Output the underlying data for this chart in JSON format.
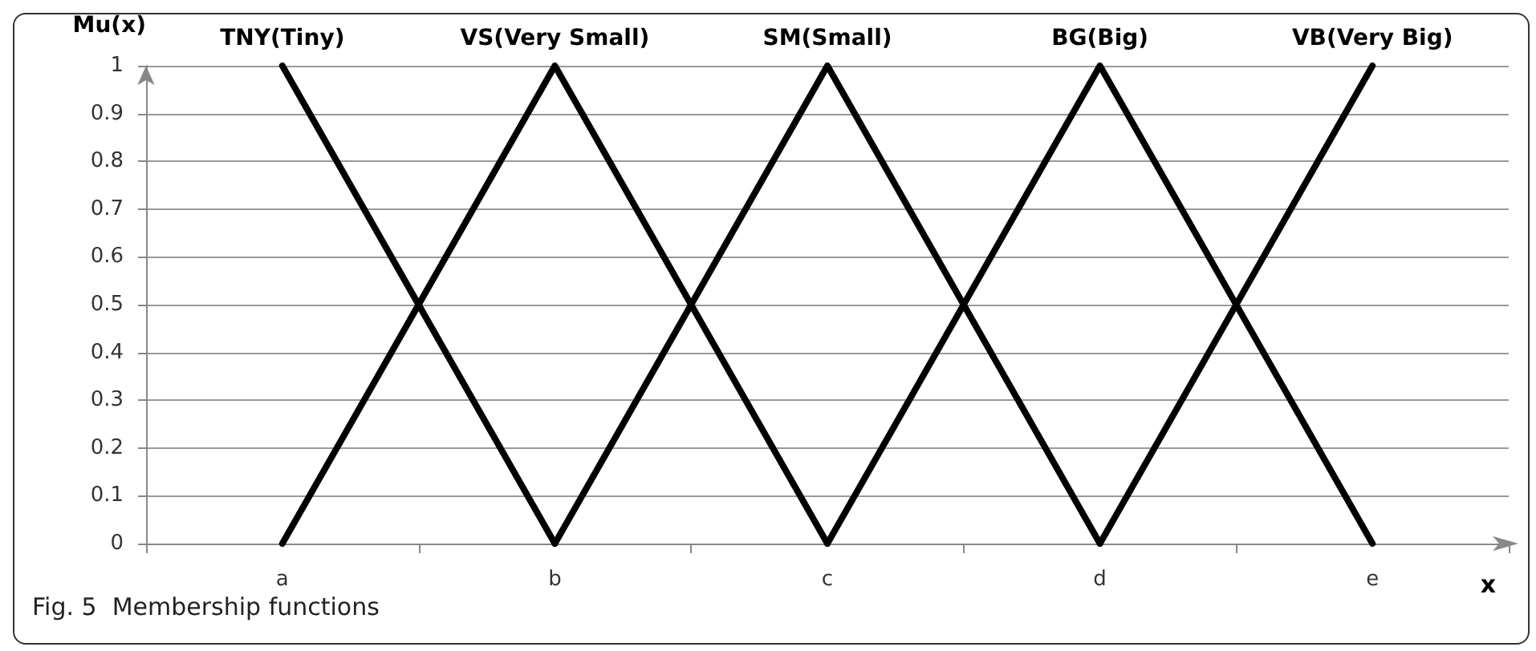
{
  "chart_data": {
    "type": "line",
    "title": "Fig. 5  Membership functions",
    "xlabel": "x",
    "ylabel": "Mu(x)",
    "categories": [
      "a",
      "b",
      "c",
      "d",
      "e"
    ],
    "series": [
      {
        "name": "TNY(Tiny)",
        "color": "#000000",
        "values": [
          1,
          0,
          null,
          null,
          null
        ]
      },
      {
        "name": "VS(Very Small)",
        "color": "#000000",
        "values": [
          0,
          1,
          0,
          null,
          null
        ]
      },
      {
        "name": "SM(Small)",
        "color": "#000000",
        "values": [
          null,
          0,
          1,
          0,
          null
        ]
      },
      {
        "name": "BG(Big)",
        "color": "#000000",
        "values": [
          null,
          null,
          0,
          1,
          0
        ]
      },
      {
        "name": "VB(Very Big)",
        "color": "#000000",
        "values": [
          null,
          null,
          null,
          0,
          1
        ]
      }
    ],
    "ylim": [
      0,
      1
    ],
    "yticks": [
      0,
      0.1,
      0.2,
      0.3,
      0.4,
      0.5,
      0.6,
      0.7,
      0.8,
      0.9,
      1
    ],
    "grid": "y",
    "legend": false,
    "marker": "none",
    "line_style": "solid"
  }
}
